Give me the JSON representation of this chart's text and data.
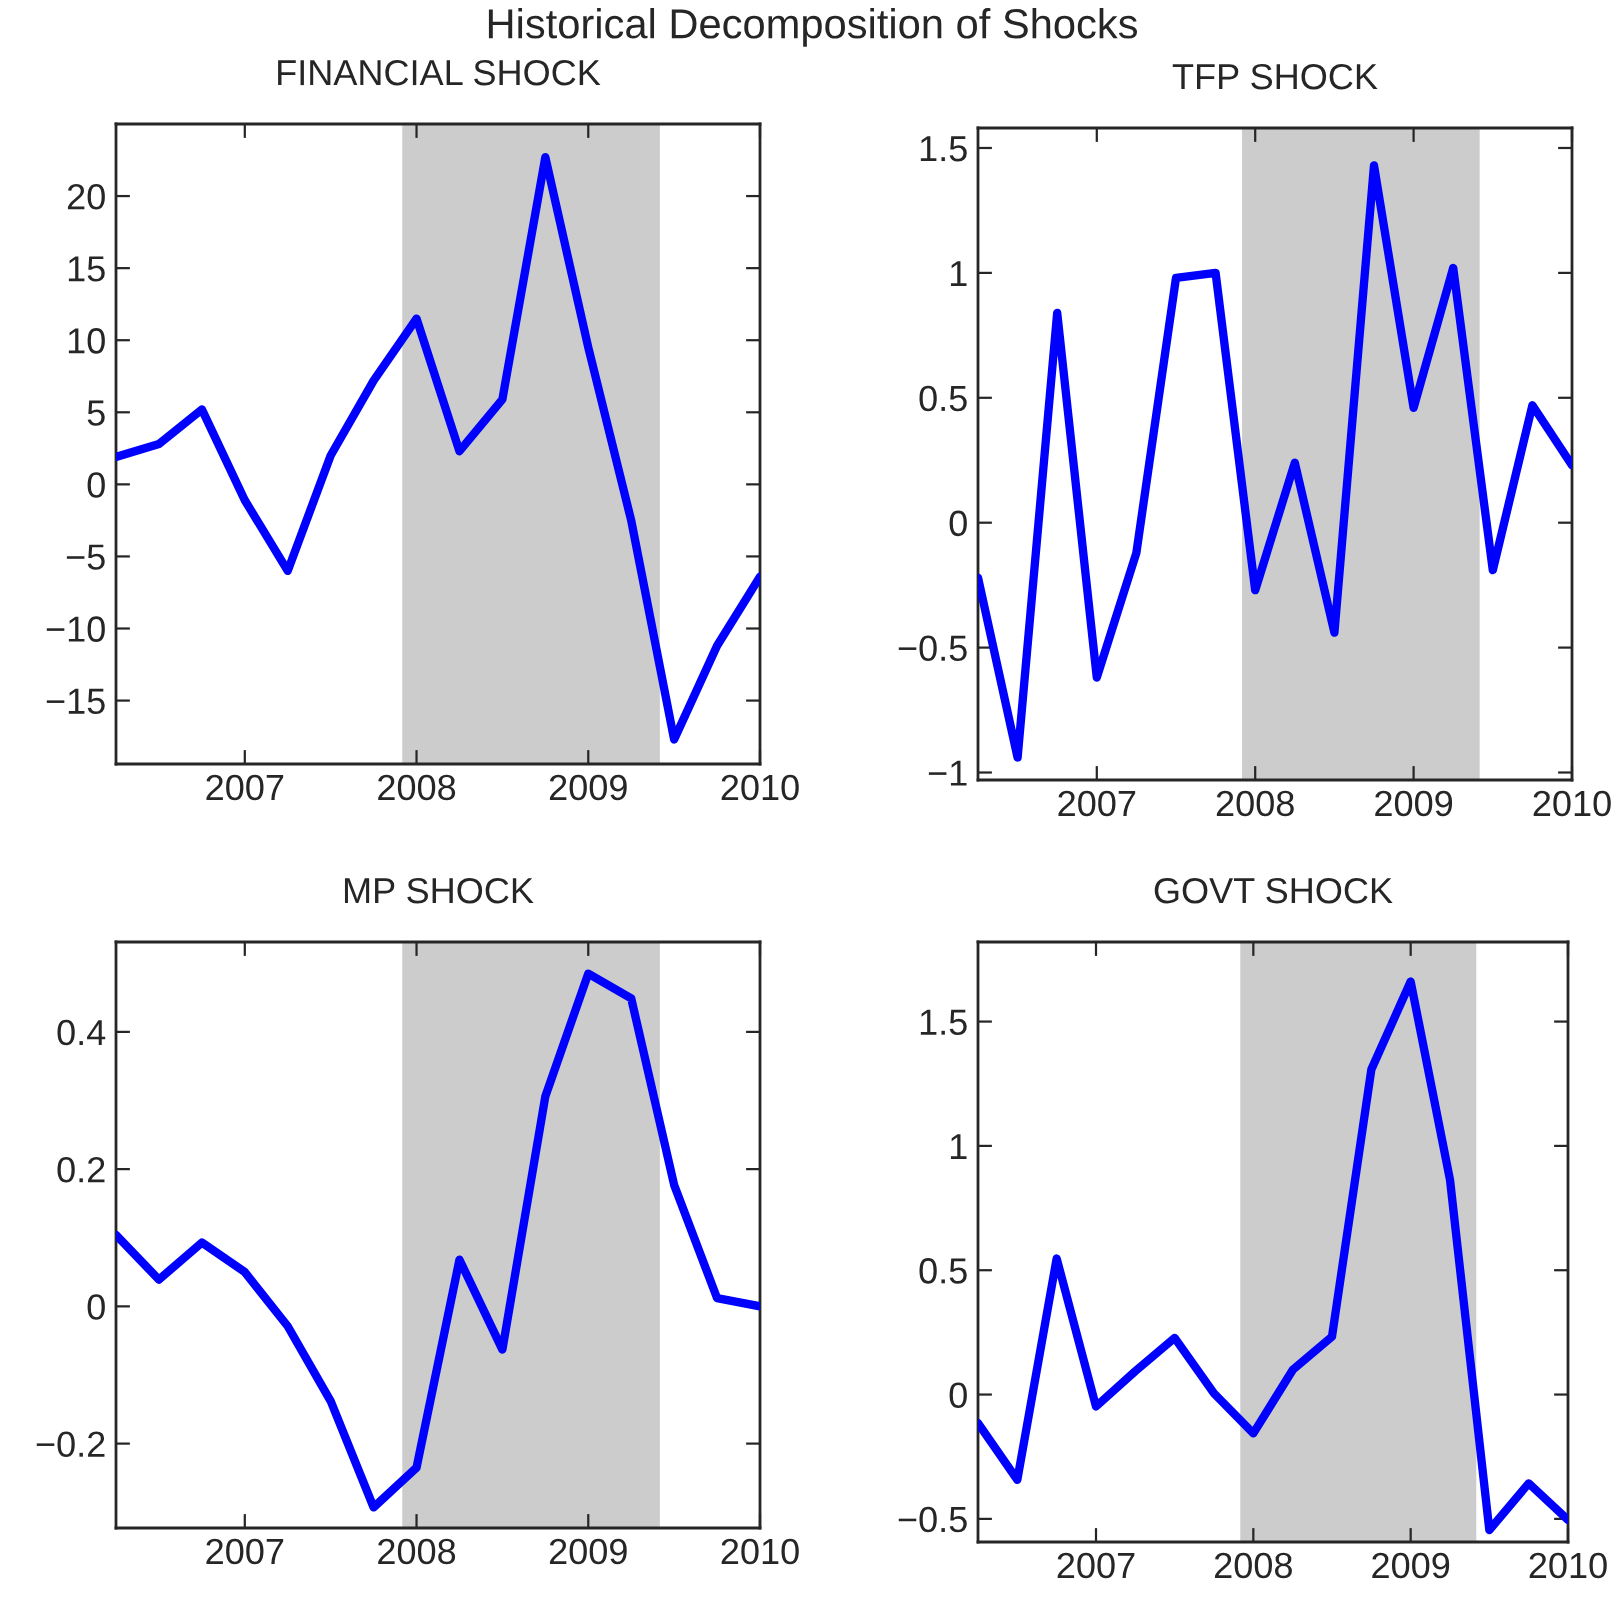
{
  "chart_data": [
    {
      "type": "line",
      "title": "FINANCIAL SHOCK",
      "annotations": [
        "Historical Decomposition of Shocks"
      ],
      "x": [
        2006.25,
        2006.5,
        2006.75,
        2007,
        2007.25,
        2007.5,
        2007.75,
        2008,
        2008.25,
        2008.5,
        2008.75,
        2009,
        2009.25,
        2009.5,
        2009.75,
        2010
      ],
      "series": [
        {
          "color": "#0000ff",
          "values": [
            1.9,
            2.8,
            5.2,
            -1.1,
            -6.0,
            2.0,
            7.2,
            11.5,
            2.3,
            5.9,
            22.7,
            9.5,
            -2.5,
            -17.7,
            -11.2,
            -6.4
          ]
        }
      ],
      "xlim": [
        2006.25,
        2010
      ],
      "xticks": [
        2007,
        2008,
        2009,
        2010
      ],
      "ylim": [
        -19.4,
        25
      ],
      "yticks": [
        -15,
        -10,
        -5,
        0,
        5,
        10,
        15,
        20
      ],
      "bands": [
        {
          "axis": "x",
          "from": 2007.917,
          "to": 2009.417,
          "color": "#cccccc"
        }
      ],
      "grid": false,
      "legend": false,
      "line_style": "solid",
      "marker": "none"
    },
    {
      "type": "line",
      "title": "TFP SHOCK",
      "x": [
        2006.25,
        2006.5,
        2006.75,
        2007,
        2007.25,
        2007.5,
        2007.75,
        2008,
        2008.25,
        2008.5,
        2008.75,
        2009,
        2009.25,
        2009.5,
        2009.75,
        2010
      ],
      "series": [
        {
          "color": "#0000ff",
          "values": [
            -0.22,
            -0.94,
            0.84,
            -0.62,
            -0.12,
            0.98,
            1.0,
            -0.27,
            0.24,
            -0.44,
            1.43,
            0.46,
            1.02,
            -0.19,
            0.47,
            0.23
          ]
        }
      ],
      "xlim": [
        2006.25,
        2010
      ],
      "xticks": [
        2007,
        2008,
        2009,
        2010
      ],
      "ylim": [
        -1.03,
        1.58
      ],
      "yticks": [
        -1,
        -0.5,
        0,
        0.5,
        1,
        1.5
      ],
      "bands": [
        {
          "axis": "x",
          "from": 2007.917,
          "to": 2009.417,
          "color": "#cccccc"
        }
      ],
      "grid": false,
      "legend": false,
      "line_style": "solid",
      "marker": "none"
    },
    {
      "type": "line",
      "title": "MP SHOCK",
      "x": [
        2006.25,
        2006.5,
        2006.75,
        2007,
        2007.25,
        2007.5,
        2007.75,
        2008,
        2008.25,
        2008.5,
        2008.75,
        2009,
        2009.25,
        2009.5,
        2009.75,
        2010
      ],
      "series": [
        {
          "color": "#0000ff",
          "values": [
            0.104,
            0.039,
            0.093,
            0.05,
            -0.029,
            -0.138,
            -0.293,
            -0.235,
            0.068,
            -0.063,
            0.306,
            0.485,
            0.449,
            0.177,
            0.012,
            0.0
          ]
        }
      ],
      "xlim": [
        2006.25,
        2010
      ],
      "xticks": [
        2007,
        2008,
        2009,
        2010
      ],
      "ylim": [
        -0.323,
        0.531
      ],
      "yticks": [
        -0.2,
        0,
        0.2,
        0.4
      ],
      "bands": [
        {
          "axis": "x",
          "from": 2007.917,
          "to": 2009.417,
          "color": "#cccccc"
        }
      ],
      "grid": false,
      "legend": false,
      "line_style": "solid",
      "marker": "none"
    },
    {
      "type": "line",
      "title": "GOVT SHOCK",
      "x": [
        2006.25,
        2006.5,
        2006.75,
        2007,
        2007.25,
        2007.5,
        2007.75,
        2008,
        2008.25,
        2008.5,
        2008.75,
        2009,
        2009.25,
        2009.5,
        2009.75,
        2010
      ],
      "series": [
        {
          "color": "#0000ff",
          "values": [
            -0.115,
            -0.343,
            0.547,
            -0.048,
            0.094,
            0.228,
            0.005,
            -0.156,
            0.099,
            0.233,
            1.307,
            1.661,
            0.864,
            -0.545,
            -0.357,
            -0.504
          ]
        }
      ],
      "xlim": [
        2006.25,
        2010
      ],
      "xticks": [
        2007,
        2008,
        2009,
        2010
      ],
      "ylim": [
        -0.593,
        1.82
      ],
      "yticks": [
        -0.5,
        0,
        0.5,
        1,
        1.5
      ],
      "bands": [
        {
          "axis": "x",
          "from": 2007.917,
          "to": 2009.417,
          "color": "#cccccc"
        }
      ],
      "grid": false,
      "legend": false,
      "line_style": "solid",
      "marker": "none"
    }
  ]
}
